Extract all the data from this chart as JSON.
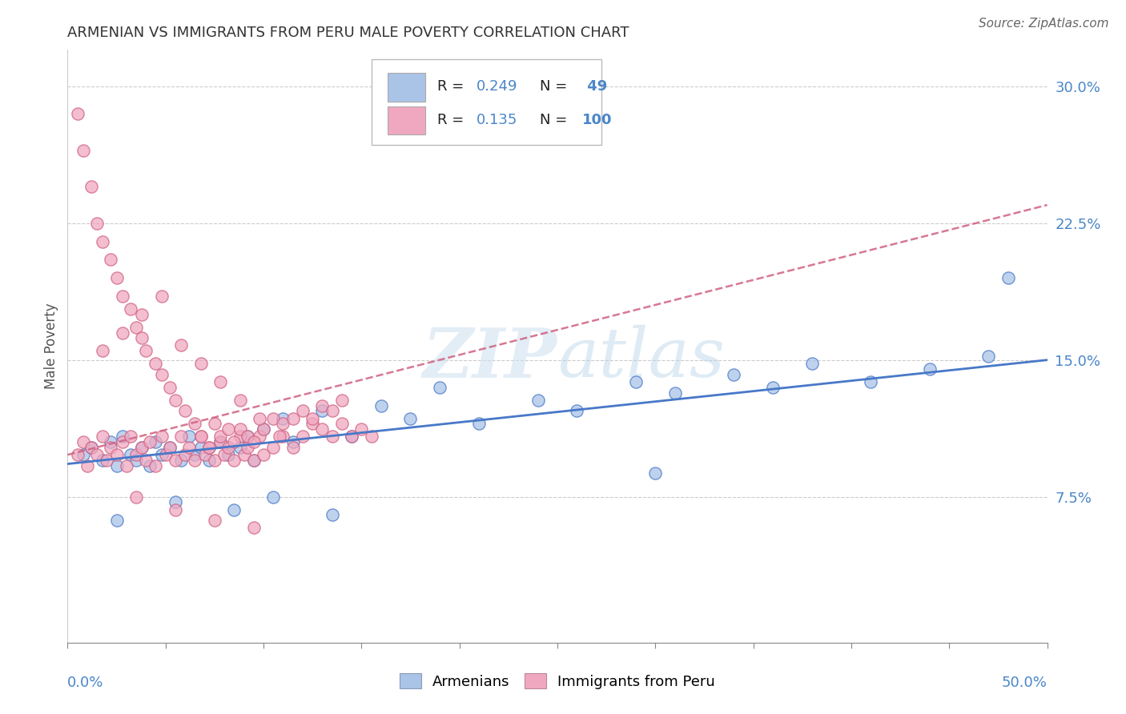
{
  "title": "ARMENIAN VS IMMIGRANTS FROM PERU MALE POVERTY CORRELATION CHART",
  "source": "Source: ZipAtlas.com",
  "ylabel": "Male Poverty",
  "xlim": [
    0.0,
    0.5
  ],
  "ylim": [
    -0.005,
    0.32
  ],
  "color_armenian": "#aac4e8",
  "color_peru": "#f0a8c0",
  "color_line_armenian": "#4878c8",
  "color_line_peru": "#d06080",
  "color_axis_label": "#4a86c8",
  "color_grid": "#cccccc",
  "ytick_vals": [
    0.075,
    0.15,
    0.225,
    0.3
  ],
  "ytick_labels": [
    "7.5%",
    "15.0%",
    "22.5%",
    "30.0%"
  ],
  "arm_x": [
    0.008,
    0.012,
    0.018,
    0.022,
    0.025,
    0.028,
    0.032,
    0.035,
    0.038,
    0.042,
    0.045,
    0.048,
    0.052,
    0.058,
    0.062,
    0.065,
    0.068,
    0.072,
    0.078,
    0.082,
    0.088,
    0.092,
    0.095,
    0.1,
    0.11,
    0.115,
    0.13,
    0.145,
    0.16,
    0.175,
    0.19,
    0.21,
    0.24,
    0.26,
    0.29,
    0.31,
    0.34,
    0.36,
    0.38,
    0.41,
    0.44,
    0.47,
    0.025,
    0.055,
    0.085,
    0.105,
    0.135,
    0.3,
    0.48
  ],
  "arm_y": [
    0.098,
    0.102,
    0.095,
    0.105,
    0.092,
    0.108,
    0.098,
    0.095,
    0.102,
    0.092,
    0.105,
    0.098,
    0.102,
    0.095,
    0.108,
    0.098,
    0.102,
    0.095,
    0.105,
    0.098,
    0.102,
    0.108,
    0.095,
    0.112,
    0.118,
    0.105,
    0.122,
    0.108,
    0.125,
    0.118,
    0.135,
    0.115,
    0.128,
    0.122,
    0.138,
    0.132,
    0.142,
    0.135,
    0.148,
    0.138,
    0.145,
    0.152,
    0.062,
    0.072,
    0.068,
    0.075,
    0.065,
    0.088,
    0.195
  ],
  "peru_x": [
    0.005,
    0.008,
    0.01,
    0.012,
    0.015,
    0.018,
    0.02,
    0.022,
    0.025,
    0.028,
    0.03,
    0.032,
    0.035,
    0.038,
    0.04,
    0.042,
    0.045,
    0.048,
    0.05,
    0.052,
    0.055,
    0.058,
    0.06,
    0.062,
    0.065,
    0.068,
    0.07,
    0.072,
    0.075,
    0.078,
    0.08,
    0.082,
    0.085,
    0.088,
    0.09,
    0.092,
    0.095,
    0.098,
    0.1,
    0.105,
    0.11,
    0.115,
    0.12,
    0.125,
    0.13,
    0.135,
    0.14,
    0.145,
    0.15,
    0.155,
    0.005,
    0.008,
    0.012,
    0.015,
    0.018,
    0.022,
    0.025,
    0.028,
    0.032,
    0.035,
    0.038,
    0.04,
    0.045,
    0.048,
    0.052,
    0.055,
    0.06,
    0.065,
    0.068,
    0.072,
    0.075,
    0.078,
    0.082,
    0.085,
    0.088,
    0.092,
    0.095,
    0.1,
    0.105,
    0.11,
    0.115,
    0.12,
    0.125,
    0.13,
    0.135,
    0.14,
    0.018,
    0.028,
    0.038,
    0.048,
    0.058,
    0.068,
    0.078,
    0.088,
    0.098,
    0.108,
    0.035,
    0.055,
    0.075,
    0.095
  ],
  "peru_y": [
    0.098,
    0.105,
    0.092,
    0.102,
    0.098,
    0.108,
    0.095,
    0.102,
    0.098,
    0.105,
    0.092,
    0.108,
    0.098,
    0.102,
    0.095,
    0.105,
    0.092,
    0.108,
    0.098,
    0.102,
    0.095,
    0.108,
    0.098,
    0.102,
    0.095,
    0.108,
    0.098,
    0.102,
    0.095,
    0.105,
    0.098,
    0.102,
    0.095,
    0.108,
    0.098,
    0.102,
    0.095,
    0.108,
    0.098,
    0.102,
    0.108,
    0.102,
    0.108,
    0.115,
    0.112,
    0.108,
    0.115,
    0.108,
    0.112,
    0.108,
    0.285,
    0.265,
    0.245,
    0.225,
    0.215,
    0.205,
    0.195,
    0.185,
    0.178,
    0.168,
    0.162,
    0.155,
    0.148,
    0.142,
    0.135,
    0.128,
    0.122,
    0.115,
    0.108,
    0.102,
    0.115,
    0.108,
    0.112,
    0.105,
    0.112,
    0.108,
    0.105,
    0.112,
    0.118,
    0.115,
    0.118,
    0.122,
    0.118,
    0.125,
    0.122,
    0.128,
    0.155,
    0.165,
    0.175,
    0.185,
    0.158,
    0.148,
    0.138,
    0.128,
    0.118,
    0.108,
    0.075,
    0.068,
    0.062,
    0.058
  ]
}
